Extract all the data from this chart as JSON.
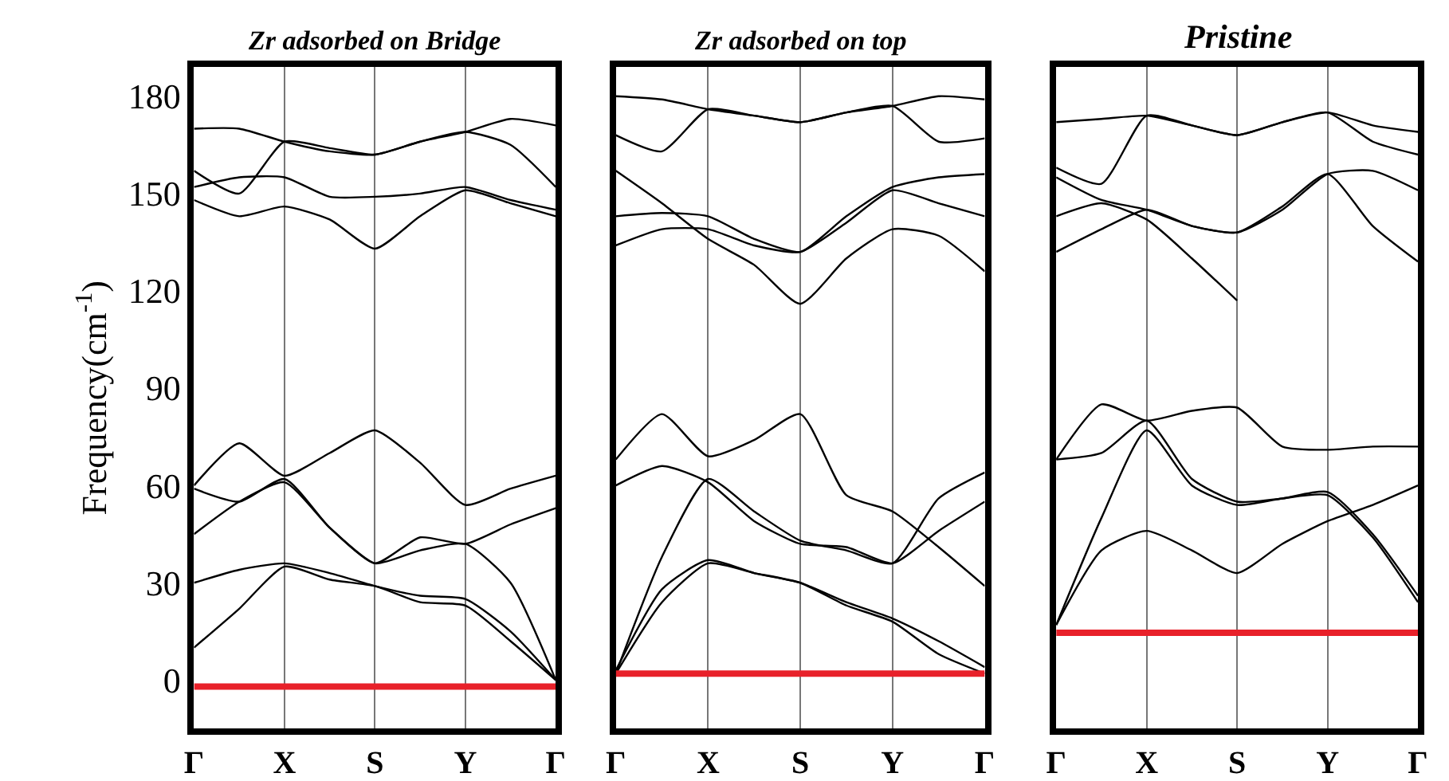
{
  "chart_data": [
    {
      "type": "line",
      "title": "Zr adsorbed on Bridge",
      "ylabel": "Frequency(cm$^{-1}$)",
      "categories": [
        "Γ",
        null,
        "X",
        null,
        "S",
        null,
        "Y",
        null,
        "Γ"
      ],
      "ylim": [
        -15,
        189
      ],
      "yticks": [
        0,
        30,
        60,
        90,
        120,
        150,
        180
      ],
      "grid": "x",
      "series": [
        {
          "color": "#000000",
          "values": [
            170,
            170,
            166,
            163,
            162,
            166,
            169,
            173,
            171
          ]
        },
        {
          "color": "#000000",
          "values": [
            157,
            150,
            166,
            164,
            162,
            166,
            169,
            165,
            152
          ]
        },
        {
          "color": "#000000",
          "values": [
            152,
            155,
            155,
            149,
            149,
            150,
            152,
            148,
            145
          ]
        },
        {
          "color": "#000000",
          "values": [
            148,
            143,
            146,
            142,
            133,
            143,
            151,
            147,
            143
          ]
        },
        {
          "color": "#000000",
          "values": [
            60,
            73,
            63,
            70,
            77,
            67,
            54,
            59,
            63
          ]
        },
        {
          "color": "#000000",
          "values": [
            59,
            55,
            62,
            47,
            36,
            44,
            42,
            48,
            53
          ]
        },
        {
          "color": "#000000",
          "values": [
            45,
            55,
            61,
            47,
            36,
            40,
            42,
            30,
            0
          ]
        },
        {
          "color": "#000000",
          "values": [
            30,
            34,
            36,
            33,
            29,
            26,
            25,
            15,
            0
          ]
        },
        {
          "color": "#000000",
          "values": [
            10,
            22,
            35,
            31,
            29,
            24,
            23,
            12,
            0
          ]
        }
      ],
      "ref_lines": [
        {
          "axis": "y",
          "value": -2,
          "color": "#e8212a"
        }
      ]
    },
    {
      "type": "line",
      "title": "Zr adsorbed on top",
      "categories": [
        "Γ",
        null,
        "X",
        null,
        "S",
        null,
        "Y",
        null,
        "Γ"
      ],
      "ylim": [
        -15,
        189
      ],
      "grid": "x",
      "tick_labels": "x",
      "series": [
        {
          "color": "#000000",
          "values": [
            180,
            179,
            176,
            174,
            172,
            175,
            177,
            180,
            179
          ]
        },
        {
          "color": "#000000",
          "values": [
            168,
            163,
            176,
            174,
            172,
            175,
            177,
            166,
            167
          ]
        },
        {
          "color": "#000000",
          "values": [
            157,
            147,
            136,
            128,
            116,
            130,
            139,
            137,
            126
          ]
        },
        {
          "color": "#000000",
          "values": [
            143,
            144,
            143,
            136,
            132,
            143,
            152,
            155,
            156
          ]
        },
        {
          "color": "#000000",
          "values": [
            134,
            139,
            139,
            134,
            132,
            141,
            151,
            147,
            143
          ]
        },
        {
          "color": "#000000",
          "values": [
            68,
            82,
            69,
            74,
            82,
            57,
            52,
            41,
            29
          ]
        },
        {
          "color": "#000000",
          "values": [
            60,
            66,
            61,
            49,
            42,
            41,
            36,
            46,
            55
          ]
        },
        {
          "color": "#000000",
          "values": [
            2,
            38,
            62,
            52,
            43,
            40,
            36,
            56,
            64
          ]
        },
        {
          "color": "#000000",
          "values": [
            3,
            28,
            37,
            33,
            30,
            24,
            19,
            12,
            4
          ]
        },
        {
          "color": "#000000",
          "values": [
            2,
            24,
            36,
            33,
            30,
            23,
            18,
            8,
            2
          ]
        }
      ],
      "ref_lines": [
        {
          "axis": "y",
          "value": 2,
          "color": "#e8212a"
        }
      ]
    },
    {
      "type": "line",
      "title": "Pristine",
      "categories": [
        "Γ",
        null,
        "X",
        null,
        "S",
        null,
        "Y",
        null,
        "Γ"
      ],
      "ylim": [
        -15,
        189
      ],
      "grid": "x",
      "tick_labels": "x",
      "series": [
        {
          "color": "#000000",
          "values": [
            172,
            173,
            174,
            171,
            168,
            172,
            175,
            171,
            169
          ]
        },
        {
          "color": "#000000",
          "values": [
            158,
            153,
            174,
            171,
            168,
            172,
            175,
            166,
            162
          ]
        },
        {
          "color": "#000000",
          "values": [
            155,
            148,
            145,
            140,
            138,
            145,
            156,
            157,
            151
          ]
        },
        {
          "color": "#000000",
          "values": [
            143,
            147,
            142,
            130,
            117,
            null,
            null,
            null,
            null
          ]
        },
        {
          "color": "#000000",
          "values": [
            132,
            139,
            145,
            140,
            138,
            146,
            156,
            140,
            129
          ]
        },
        {
          "color": "#000000",
          "values": [
            68,
            85,
            80,
            83,
            84,
            72,
            71,
            72,
            72
          ]
        },
        {
          "color": "#000000",
          "values": [
            68,
            70,
            80,
            62,
            55,
            56,
            58,
            45,
            26
          ]
        },
        {
          "color": "#000000",
          "values": [
            17,
            50,
            77,
            60,
            54,
            56,
            57,
            44,
            24
          ]
        },
        {
          "color": "#000000",
          "values": [
            17,
            40,
            46,
            40,
            33,
            42,
            49,
            54,
            60
          ]
        }
      ],
      "ref_lines": [
        {
          "axis": "y",
          "value": 14.6,
          "color": "#e8212a"
        }
      ]
    }
  ]
}
